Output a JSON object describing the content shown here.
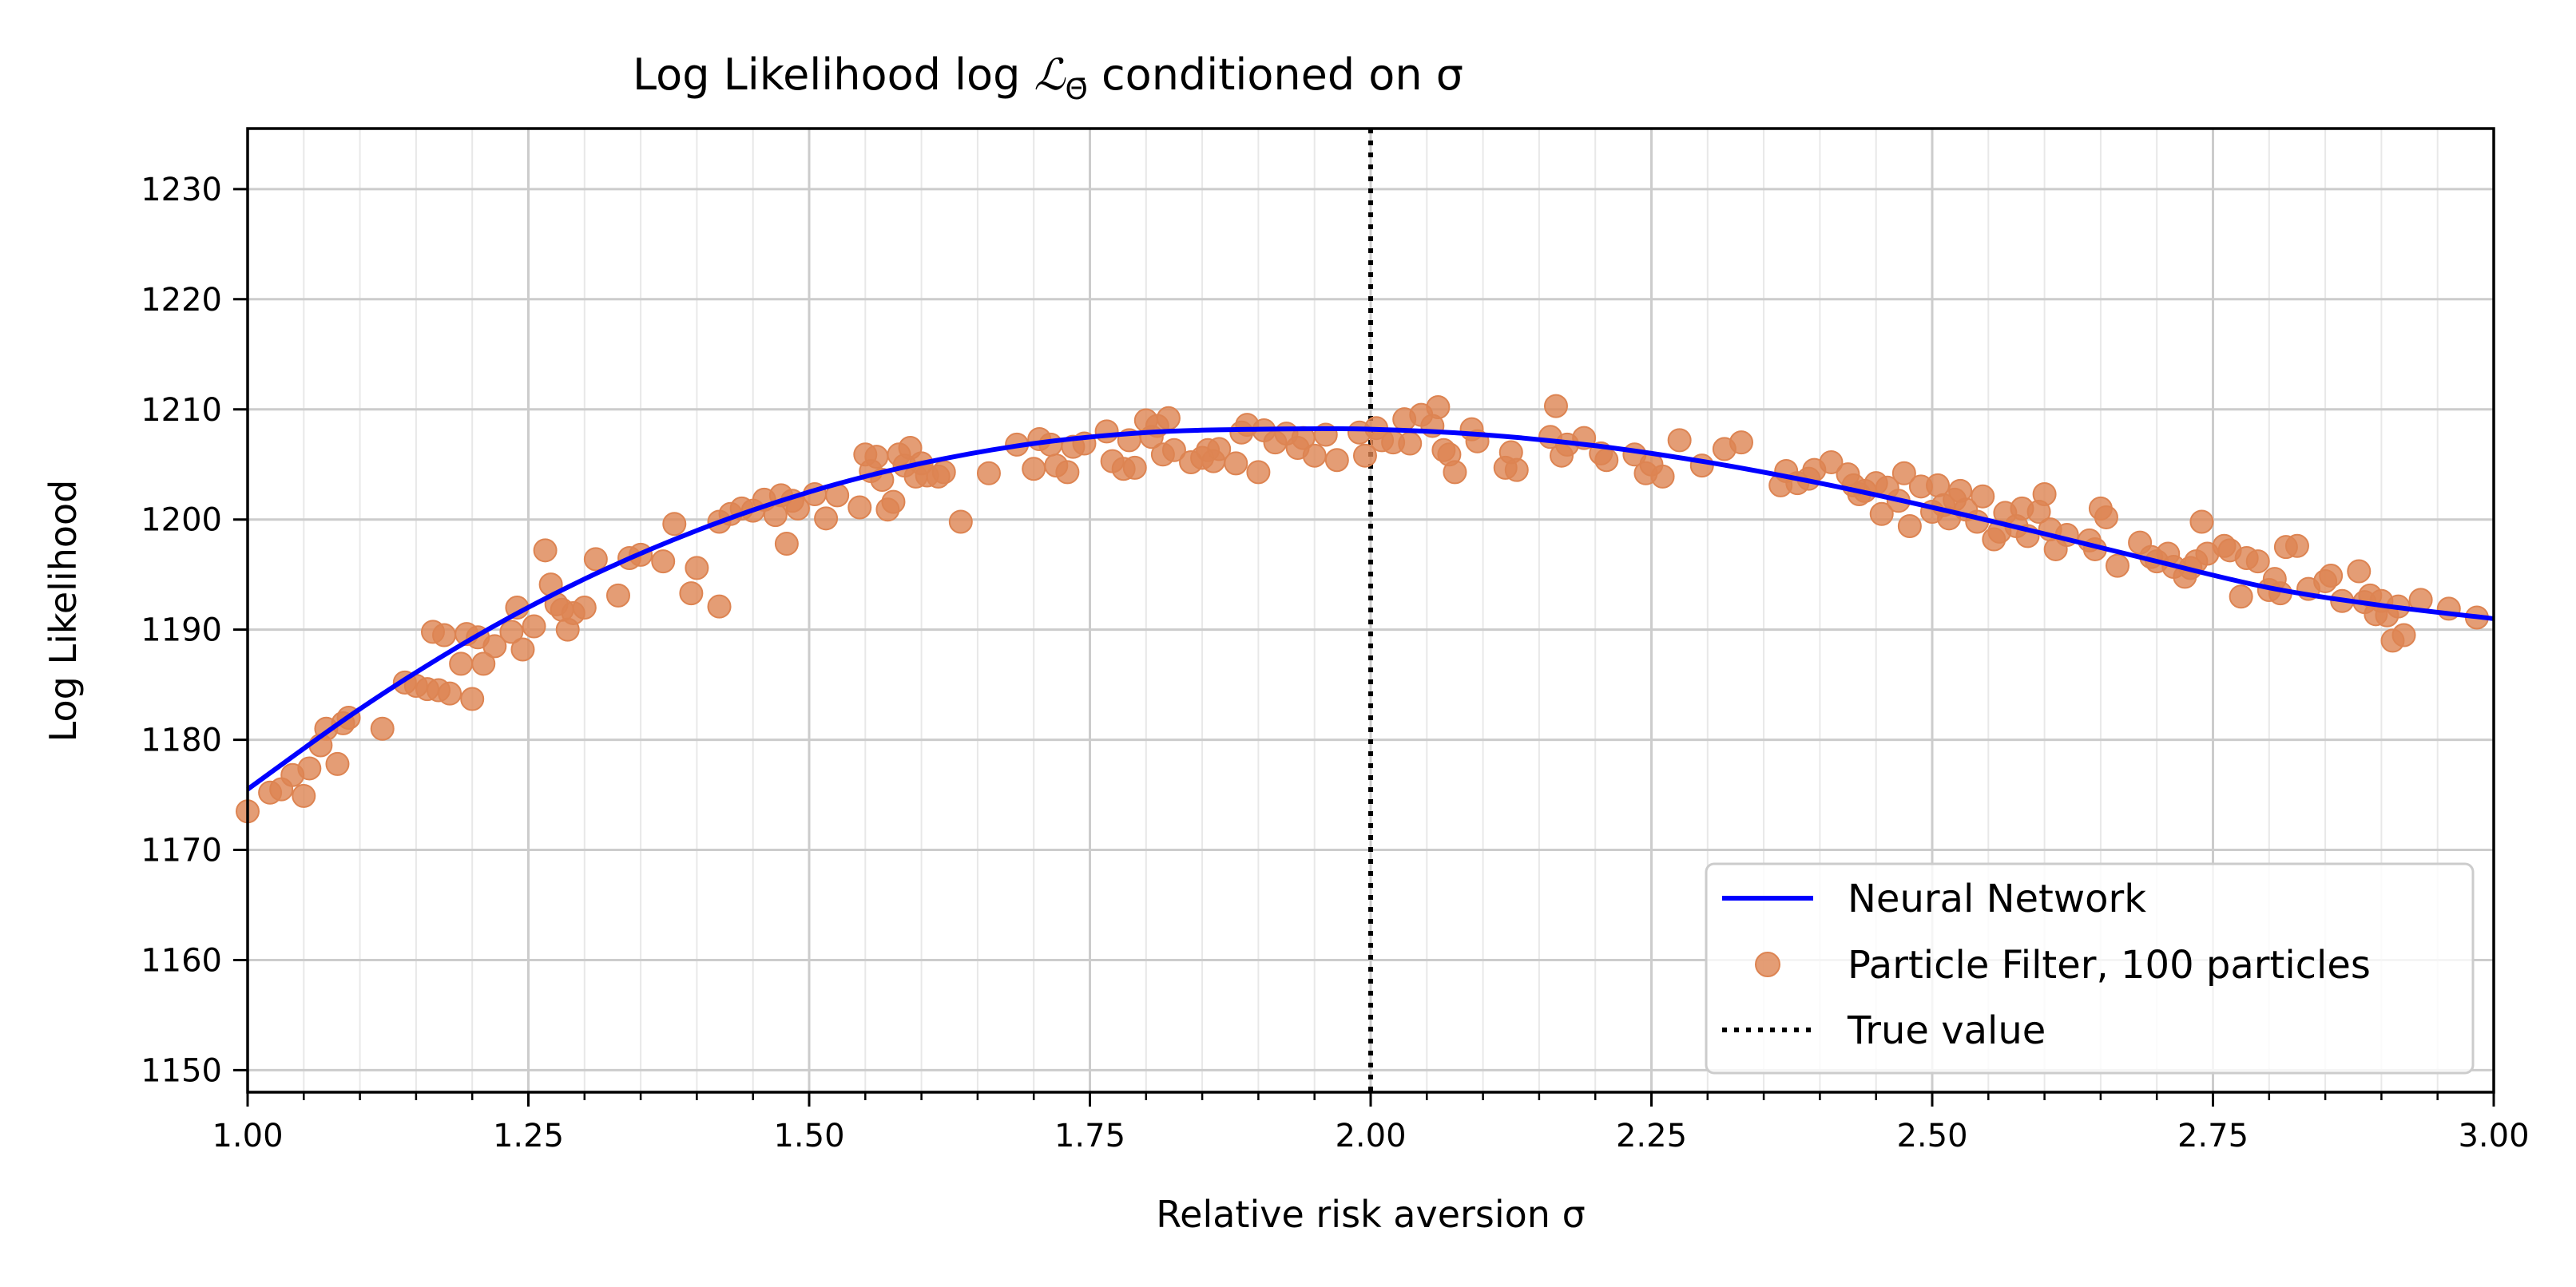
{
  "chart_data": {
    "type": "scatter",
    "title_prefix": "Log Likelihood log",
    "title_math": "ℒ",
    "title_subscript": "Θ̄",
    "title_suffix": "conditioned on σ",
    "xlabel": "Relative risk aversion σ",
    "ylabel": "Log Likelihood",
    "xlim": [
      1.0,
      3.0
    ],
    "ylim": [
      1148,
      1235.5
    ],
    "xticks": [
      "1.00",
      "1.25",
      "1.50",
      "1.75",
      "2.00",
      "2.25",
      "2.50",
      "2.75",
      "3.00"
    ],
    "yticks": [
      "1150",
      "1160",
      "1170",
      "1180",
      "1190",
      "1200",
      "1210",
      "1220",
      "1230"
    ],
    "grid": true,
    "minor_grid": true,
    "legend_position": "lower-right",
    "true_value": 2.0,
    "series": [
      {
        "name": "Neural Network",
        "kind": "line",
        "color": "#0000ff",
        "x": [
          1.0,
          1.1,
          1.2,
          1.3,
          1.4,
          1.5,
          1.6,
          1.7,
          1.8,
          1.9,
          2.0,
          2.1,
          2.2,
          2.3,
          2.4,
          2.5,
          2.6,
          2.7,
          2.8,
          2.9,
          3.0
        ],
        "y": [
          1175.5,
          1182.8,
          1189.2,
          1194.6,
          1199.0,
          1202.5,
          1205.1,
          1206.9,
          1207.9,
          1208.2,
          1208.2,
          1207.7,
          1206.7,
          1205.2,
          1203.3,
          1201.1,
          1198.7,
          1196.2,
          1193.8,
          1192.2,
          1191.0
        ]
      },
      {
        "name": "Particle Filter, 100 particles",
        "kind": "scatter",
        "color": "#dd8452",
        "points": [
          [
            1.0,
            1173.5
          ],
          [
            1.02,
            1175.2
          ],
          [
            1.03,
            1175.5
          ],
          [
            1.04,
            1176.8
          ],
          [
            1.05,
            1174.9
          ],
          [
            1.055,
            1177.4
          ],
          [
            1.065,
            1179.5
          ],
          [
            1.07,
            1181.0
          ],
          [
            1.08,
            1177.8
          ],
          [
            1.085,
            1181.5
          ],
          [
            1.09,
            1182.0
          ],
          [
            1.12,
            1181.0
          ],
          [
            1.14,
            1185.2
          ],
          [
            1.15,
            1184.9
          ],
          [
            1.16,
            1184.6
          ],
          [
            1.165,
            1189.8
          ],
          [
            1.17,
            1184.5
          ],
          [
            1.175,
            1189.5
          ],
          [
            1.18,
            1184.2
          ],
          [
            1.19,
            1186.9
          ],
          [
            1.195,
            1189.6
          ],
          [
            1.2,
            1183.7
          ],
          [
            1.205,
            1189.3
          ],
          [
            1.21,
            1186.9
          ],
          [
            1.22,
            1188.5
          ],
          [
            1.235,
            1189.8
          ],
          [
            1.24,
            1192.0
          ],
          [
            1.245,
            1188.2
          ],
          [
            1.255,
            1190.3
          ],
          [
            1.265,
            1197.2
          ],
          [
            1.27,
            1194.1
          ],
          [
            1.275,
            1192.3
          ],
          [
            1.28,
            1191.8
          ],
          [
            1.285,
            1190.0
          ],
          [
            1.29,
            1191.5
          ],
          [
            1.3,
            1192.0
          ],
          [
            1.31,
            1196.4
          ],
          [
            1.33,
            1193.1
          ],
          [
            1.34,
            1196.5
          ],
          [
            1.35,
            1196.8
          ],
          [
            1.37,
            1196.2
          ],
          [
            1.38,
            1199.6
          ],
          [
            1.395,
            1193.3
          ],
          [
            1.4,
            1195.6
          ],
          [
            1.42,
            1192.1
          ],
          [
            1.42,
            1199.8
          ],
          [
            1.43,
            1200.5
          ],
          [
            1.44,
            1201.0
          ],
          [
            1.45,
            1200.8
          ],
          [
            1.46,
            1201.8
          ],
          [
            1.47,
            1200.4
          ],
          [
            1.475,
            1202.2
          ],
          [
            1.48,
            1197.8
          ],
          [
            1.485,
            1201.7
          ],
          [
            1.49,
            1201.0
          ],
          [
            1.505,
            1202.3
          ],
          [
            1.515,
            1200.1
          ],
          [
            1.525,
            1202.2
          ],
          [
            1.545,
            1201.1
          ],
          [
            1.55,
            1205.9
          ],
          [
            1.555,
            1204.4
          ],
          [
            1.56,
            1205.7
          ],
          [
            1.565,
            1203.6
          ],
          [
            1.57,
            1200.9
          ],
          [
            1.575,
            1201.6
          ],
          [
            1.58,
            1205.9
          ],
          [
            1.585,
            1204.9
          ],
          [
            1.59,
            1206.5
          ],
          [
            1.595,
            1203.9
          ],
          [
            1.6,
            1205.1
          ],
          [
            1.605,
            1204.0
          ],
          [
            1.615,
            1203.9
          ],
          [
            1.62,
            1204.3
          ],
          [
            1.635,
            1199.8
          ],
          [
            1.66,
            1204.2
          ],
          [
            1.685,
            1206.8
          ],
          [
            1.7,
            1204.6
          ],
          [
            1.705,
            1207.3
          ],
          [
            1.715,
            1206.8
          ],
          [
            1.72,
            1204.9
          ],
          [
            1.73,
            1204.3
          ],
          [
            1.735,
            1206.6
          ],
          [
            1.745,
            1206.9
          ],
          [
            1.765,
            1208.0
          ],
          [
            1.77,
            1205.3
          ],
          [
            1.78,
            1204.6
          ],
          [
            1.785,
            1207.2
          ],
          [
            1.79,
            1204.7
          ],
          [
            1.8,
            1209.0
          ],
          [
            1.805,
            1207.5
          ],
          [
            1.81,
            1208.5
          ],
          [
            1.815,
            1205.9
          ],
          [
            1.82,
            1209.2
          ],
          [
            1.825,
            1206.3
          ],
          [
            1.84,
            1205.2
          ],
          [
            1.85,
            1205.6
          ],
          [
            1.855,
            1206.3
          ],
          [
            1.86,
            1205.3
          ],
          [
            1.865,
            1206.4
          ],
          [
            1.88,
            1205.1
          ],
          [
            1.885,
            1207.9
          ],
          [
            1.89,
            1208.6
          ],
          [
            1.9,
            1204.3
          ],
          [
            1.905,
            1208.1
          ],
          [
            1.915,
            1207.0
          ],
          [
            1.925,
            1207.8
          ],
          [
            1.935,
            1206.5
          ],
          [
            1.94,
            1207.4
          ],
          [
            1.95,
            1205.8
          ],
          [
            1.96,
            1207.7
          ],
          [
            1.97,
            1205.4
          ],
          [
            1.99,
            1207.9
          ],
          [
            1.995,
            1205.8
          ],
          [
            2.005,
            1208.3
          ],
          [
            2.01,
            1207.2
          ],
          [
            2.02,
            1207.0
          ],
          [
            2.03,
            1209.1
          ],
          [
            2.035,
            1206.9
          ],
          [
            2.045,
            1209.5
          ],
          [
            2.055,
            1208.5
          ],
          [
            2.06,
            1210.2
          ],
          [
            2.065,
            1206.3
          ],
          [
            2.07,
            1205.9
          ],
          [
            2.075,
            1204.3
          ],
          [
            2.09,
            1208.2
          ],
          [
            2.095,
            1207.1
          ],
          [
            2.12,
            1204.7
          ],
          [
            2.125,
            1206.1
          ],
          [
            2.13,
            1204.5
          ],
          [
            2.16,
            1207.5
          ],
          [
            2.165,
            1210.3
          ],
          [
            2.17,
            1205.8
          ],
          [
            2.175,
            1206.8
          ],
          [
            2.19,
            1207.4
          ],
          [
            2.205,
            1206.0
          ],
          [
            2.21,
            1205.4
          ],
          [
            2.235,
            1205.9
          ],
          [
            2.245,
            1204.2
          ],
          [
            2.25,
            1205.0
          ],
          [
            2.26,
            1203.9
          ],
          [
            2.275,
            1207.2
          ],
          [
            2.295,
            1204.9
          ],
          [
            2.315,
            1206.4
          ],
          [
            2.33,
            1207.0
          ],
          [
            2.365,
            1203.1
          ],
          [
            2.37,
            1204.4
          ],
          [
            2.38,
            1203.3
          ],
          [
            2.39,
            1203.7
          ],
          [
            2.395,
            1204.5
          ],
          [
            2.41,
            1205.2
          ],
          [
            2.425,
            1204.1
          ],
          [
            2.43,
            1203.1
          ],
          [
            2.435,
            1202.3
          ],
          [
            2.44,
            1202.6
          ],
          [
            2.45,
            1203.3
          ],
          [
            2.455,
            1200.5
          ],
          [
            2.46,
            1202.9
          ],
          [
            2.47,
            1201.7
          ],
          [
            2.475,
            1204.2
          ],
          [
            2.48,
            1199.4
          ],
          [
            2.49,
            1203.0
          ],
          [
            2.5,
            1200.7
          ],
          [
            2.505,
            1203.1
          ],
          [
            2.51,
            1201.3
          ],
          [
            2.515,
            1200.1
          ],
          [
            2.52,
            1201.8
          ],
          [
            2.525,
            1202.6
          ],
          [
            2.53,
            1200.9
          ],
          [
            2.54,
            1199.8
          ],
          [
            2.545,
            1202.1
          ],
          [
            2.555,
            1198.2
          ],
          [
            2.56,
            1198.9
          ],
          [
            2.565,
            1200.6
          ],
          [
            2.575,
            1199.4
          ],
          [
            2.58,
            1201.0
          ],
          [
            2.585,
            1198.5
          ],
          [
            2.595,
            1200.7
          ],
          [
            2.6,
            1202.3
          ],
          [
            2.605,
            1199.1
          ],
          [
            2.61,
            1197.3
          ],
          [
            2.62,
            1198.6
          ],
          [
            2.64,
            1198.1
          ],
          [
            2.645,
            1197.3
          ],
          [
            2.65,
            1201.0
          ],
          [
            2.655,
            1200.2
          ],
          [
            2.665,
            1195.8
          ],
          [
            2.685,
            1197.9
          ],
          [
            2.695,
            1196.6
          ],
          [
            2.7,
            1196.2
          ],
          [
            2.71,
            1196.9
          ],
          [
            2.715,
            1195.7
          ],
          [
            2.725,
            1194.8
          ],
          [
            2.73,
            1195.6
          ],
          [
            2.735,
            1196.2
          ],
          [
            2.74,
            1199.8
          ],
          [
            2.745,
            1196.9
          ],
          [
            2.76,
            1197.6
          ],
          [
            2.765,
            1197.2
          ],
          [
            2.775,
            1193.0
          ],
          [
            2.78,
            1196.5
          ],
          [
            2.79,
            1196.2
          ],
          [
            2.8,
            1193.6
          ],
          [
            2.805,
            1194.6
          ],
          [
            2.81,
            1193.3
          ],
          [
            2.815,
            1197.5
          ],
          [
            2.825,
            1197.6
          ],
          [
            2.835,
            1193.7
          ],
          [
            2.85,
            1194.4
          ],
          [
            2.855,
            1194.9
          ],
          [
            2.865,
            1192.6
          ],
          [
            2.88,
            1195.3
          ],
          [
            2.885,
            1192.5
          ],
          [
            2.89,
            1193.1
          ],
          [
            2.895,
            1191.4
          ],
          [
            2.9,
            1192.6
          ],
          [
            2.905,
            1191.3
          ],
          [
            2.91,
            1189.0
          ],
          [
            2.915,
            1192.1
          ],
          [
            2.92,
            1189.5
          ],
          [
            2.935,
            1192.7
          ],
          [
            2.96,
            1191.9
          ],
          [
            2.985,
            1191.1
          ]
        ]
      },
      {
        "name": "True value",
        "kind": "vline",
        "color": "#000000",
        "x": 2.0
      }
    ]
  }
}
